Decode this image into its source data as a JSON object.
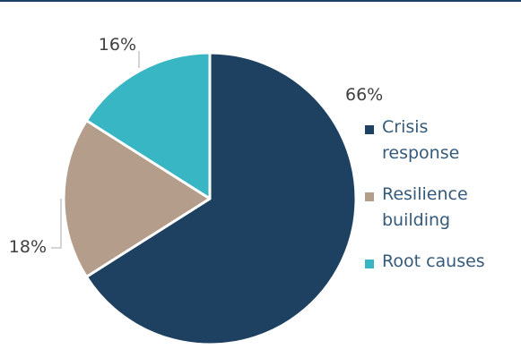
{
  "chart_data": {
    "type": "pie",
    "title": "",
    "start_angle_deg": 0,
    "direction": "clockwise",
    "slices": [
      {
        "name": "Crisis response",
        "value": 66,
        "label": "66%",
        "color": "#1e4162"
      },
      {
        "name": "Resilience building",
        "value": 18,
        "label": "18%",
        "color": "#b49d8b"
      },
      {
        "name": "Root causes",
        "value": 16,
        "label": "16%",
        "color": "#38b6c4"
      }
    ],
    "legend": {
      "position": "right",
      "entries": [
        "Crisis response",
        "Resilience building",
        "Root causes"
      ]
    }
  }
}
